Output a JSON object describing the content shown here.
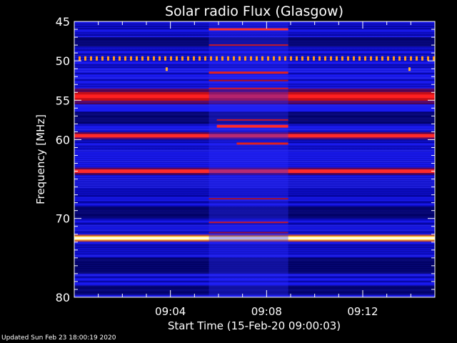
{
  "chart_data": {
    "type": "heatmap",
    "title": "Solar radio Flux (Glasgow)",
    "xlabel": "Start Time (15-Feb-20 09:00:03)",
    "ylabel": "Frequency [MHz]",
    "x_ticks": [
      "09:04",
      "09:08",
      "09:12"
    ],
    "x_tick_minutes": [
      4,
      8,
      12
    ],
    "xlim_minutes": [
      0,
      15
    ],
    "y_ticks": [
      45,
      50,
      55,
      60,
      70,
      80
    ],
    "ylim": [
      45,
      80
    ],
    "y_axis_inverted": true,
    "colormap": "blue-red-yellow",
    "bands": [
      {
        "freq": 49.7,
        "intensity": "dotted-orange"
      },
      {
        "freq": 54.5,
        "intensity": "strong-red"
      },
      {
        "freq": 59.5,
        "intensity": "red"
      },
      {
        "freq": 64.0,
        "intensity": "red"
      },
      {
        "freq": 72.5,
        "intensity": "yellow"
      }
    ],
    "burst_region_minutes": [
      5.6,
      8.9
    ]
  },
  "footer": {
    "updated": "Updated Sun Feb 23 18:00:19 2020"
  }
}
